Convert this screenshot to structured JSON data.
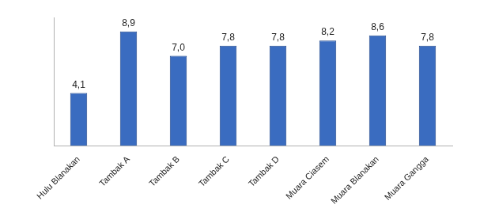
{
  "chart_data": {
    "type": "bar",
    "categories": [
      "Hulu Blanakan",
      "Tambak A",
      "Tambak B",
      "Tambak C",
      "Tambak D",
      "Muara Ciasem",
      "Muara Blanakan",
      "Muara Gangga"
    ],
    "values": [
      4.1,
      8.9,
      7.0,
      7.8,
      7.8,
      8.2,
      8.6,
      7.8
    ],
    "value_labels": [
      "4,1",
      "8,9",
      "7,0",
      "7,8",
      "7,8",
      "8,2",
      "8,6",
      "7,8"
    ],
    "color": "#3a6cc0",
    "ylim": [
      0,
      10
    ],
    "grid": false,
    "data_labels": true,
    "tick_labels": "x"
  }
}
